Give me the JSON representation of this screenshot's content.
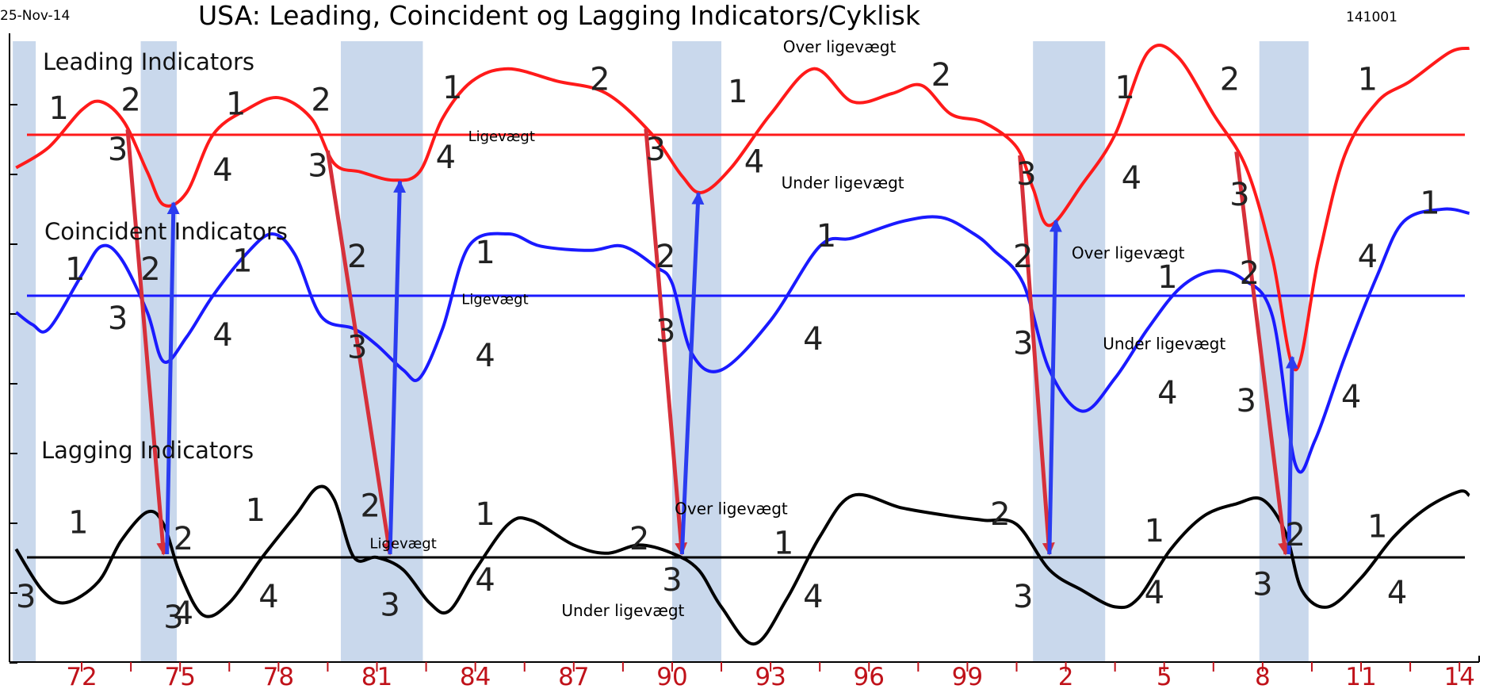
{
  "header": {
    "date": "25-Nov-14",
    "title": "USA: Leading, Coincident og Lagging Indicators/Cyklisk",
    "code": "141001"
  },
  "chart_data": {
    "type": "line",
    "title": "USA: Leading, Coincident og Lagging Indicators/Cyklisk",
    "x_tick_labels": [
      "72",
      "75",
      "78",
      "81",
      "84",
      "87",
      "90",
      "93",
      "96",
      "99",
      "2",
      "5",
      "8",
      "11",
      "14"
    ],
    "x_tick_years": [
      1972,
      1975,
      1978,
      1981,
      1984,
      1987,
      1990,
      1993,
      1996,
      1999,
      2002,
      2005,
      2008,
      2011,
      2014
    ],
    "xlim": [
      1969.8,
      2014.6
    ],
    "grid": false,
    "colors": {
      "leading": "#ff1a1a",
      "coincident": "#1a1aff",
      "lagging": "#000000",
      "recession_band": "#c9d8ec",
      "arrow_red": "#d6303a",
      "arrow_blue": "#2b3df0",
      "x_label": "#c0121a"
    },
    "recessions": [
      [
        1969.9,
        1970.6
      ],
      [
        1973.8,
        1974.9
      ],
      [
        1979.9,
        1982.4
      ],
      [
        1990.0,
        1991.5
      ],
      [
        2001.0,
        2003.2
      ],
      [
        2007.9,
        2009.4
      ]
    ],
    "series": [
      {
        "key": "leading",
        "label": "Leading Indicators",
        "equilibrium": 0,
        "points": [
          [
            1970.0,
            -0.8
          ],
          [
            1971.0,
            -0.3
          ],
          [
            1972.0,
            0.6
          ],
          [
            1972.6,
            0.8
          ],
          [
            1973.3,
            0.3
          ],
          [
            1974.0,
            -0.9
          ],
          [
            1974.5,
            -1.7
          ],
          [
            1975.2,
            -1.4
          ],
          [
            1976.0,
            0.0
          ],
          [
            1977.0,
            0.6
          ],
          [
            1978.0,
            0.9
          ],
          [
            1979.0,
            0.4
          ],
          [
            1979.7,
            -0.7
          ],
          [
            1980.5,
            -0.9
          ],
          [
            1981.5,
            -1.1
          ],
          [
            1982.3,
            -0.9
          ],
          [
            1983.0,
            0.4
          ],
          [
            1983.9,
            1.3
          ],
          [
            1985.0,
            1.6
          ],
          [
            1986.5,
            1.3
          ],
          [
            1988.0,
            1.0
          ],
          [
            1989.4,
            0.0
          ],
          [
            1990.3,
            -1.0
          ],
          [
            1990.9,
            -1.4
          ],
          [
            1991.8,
            -0.8
          ],
          [
            1993.0,
            0.5
          ],
          [
            1994.3,
            1.6
          ],
          [
            1995.5,
            0.8
          ],
          [
            1996.7,
            1.0
          ],
          [
            1997.6,
            1.2
          ],
          [
            1998.5,
            0.5
          ],
          [
            1999.5,
            0.3
          ],
          [
            2000.5,
            -0.3
          ],
          [
            2001.0,
            -1.3
          ],
          [
            2001.5,
            -2.2
          ],
          [
            2002.5,
            -1.2
          ],
          [
            2003.5,
            0.0
          ],
          [
            2004.5,
            2.0
          ],
          [
            2005.4,
            1.9
          ],
          [
            2006.5,
            0.5
          ],
          [
            2007.5,
            -0.8
          ],
          [
            2008.3,
            -3.0
          ],
          [
            2009.0,
            -5.7
          ],
          [
            2009.7,
            -3.0
          ],
          [
            2010.5,
            -0.5
          ],
          [
            2011.5,
            0.8
          ],
          [
            2012.5,
            1.3
          ],
          [
            2013.7,
            2.0
          ],
          [
            2014.3,
            2.1
          ]
        ]
      },
      {
        "key": "coincident",
        "label": "Coincident Indicators",
        "equilibrium": 0,
        "points": [
          [
            1970.0,
            -0.4
          ],
          [
            1970.5,
            -0.7
          ],
          [
            1971.0,
            -0.8
          ],
          [
            1972.0,
            0.5
          ],
          [
            1972.6,
            1.2
          ],
          [
            1973.2,
            0.9
          ],
          [
            1974.0,
            -0.4
          ],
          [
            1974.5,
            -1.6
          ],
          [
            1975.2,
            -1.0
          ],
          [
            1976.0,
            0.0
          ],
          [
            1977.0,
            1.0
          ],
          [
            1977.8,
            1.5
          ],
          [
            1978.5,
            1.0
          ],
          [
            1979.3,
            -0.5
          ],
          [
            1980.3,
            -0.8
          ],
          [
            1981.0,
            -1.2
          ],
          [
            1981.8,
            -1.8
          ],
          [
            1982.3,
            -2.0
          ],
          [
            1983.0,
            -0.8
          ],
          [
            1983.8,
            1.2
          ],
          [
            1985.0,
            1.5
          ],
          [
            1986.0,
            1.2
          ],
          [
            1987.5,
            1.1
          ],
          [
            1988.5,
            1.2
          ],
          [
            1989.5,
            0.7
          ],
          [
            1990.0,
            0.3
          ],
          [
            1990.6,
            -1.4
          ],
          [
            1991.5,
            -1.8
          ],
          [
            1993.0,
            -0.6
          ],
          [
            1994.5,
            1.2
          ],
          [
            1995.5,
            1.4
          ],
          [
            1997.0,
            1.8
          ],
          [
            1998.2,
            1.9
          ],
          [
            1999.2,
            1.5
          ],
          [
            1999.8,
            1.1
          ],
          [
            2000.7,
            0.3
          ],
          [
            2001.5,
            -1.8
          ],
          [
            2002.5,
            -2.8
          ],
          [
            2003.5,
            -2.0
          ],
          [
            2004.5,
            -0.8
          ],
          [
            2005.5,
            0.2
          ],
          [
            2006.5,
            0.6
          ],
          [
            2007.4,
            0.4
          ],
          [
            2008.3,
            -0.5
          ],
          [
            2009.0,
            -4.1
          ],
          [
            2009.6,
            -3.5
          ],
          [
            2010.5,
            -1.5
          ],
          [
            2011.5,
            0.5
          ],
          [
            2012.3,
            1.8
          ],
          [
            2013.5,
            2.1
          ],
          [
            2014.3,
            2.0
          ]
        ]
      },
      {
        "key": "lagging",
        "label": "Lagging Indicators",
        "equilibrium": 0,
        "points": [
          [
            1970.0,
            0.2
          ],
          [
            1970.8,
            -0.8
          ],
          [
            1971.5,
            -1.1
          ],
          [
            1972.5,
            -0.6
          ],
          [
            1973.2,
            0.4
          ],
          [
            1974.0,
            1.1
          ],
          [
            1974.5,
            0.8
          ],
          [
            1975.0,
            -0.4
          ],
          [
            1975.7,
            -1.4
          ],
          [
            1976.5,
            -1.1
          ],
          [
            1977.5,
            0.0
          ],
          [
            1978.5,
            1.0
          ],
          [
            1979.2,
            1.7
          ],
          [
            1979.7,
            1.4
          ],
          [
            1980.3,
            0.0
          ],
          [
            1981.0,
            0.0
          ],
          [
            1981.8,
            -0.3
          ],
          [
            1982.6,
            -1.1
          ],
          [
            1983.2,
            -1.3
          ],
          [
            1984.0,
            -0.3
          ],
          [
            1985.0,
            0.8
          ],
          [
            1985.7,
            0.9
          ],
          [
            1987.0,
            0.3
          ],
          [
            1988.0,
            0.1
          ],
          [
            1989.0,
            0.3
          ],
          [
            1990.0,
            0.1
          ],
          [
            1990.8,
            -0.3
          ],
          [
            1991.5,
            -1.2
          ],
          [
            1992.5,
            -2.1
          ],
          [
            1993.5,
            -1.0
          ],
          [
            1994.5,
            0.5
          ],
          [
            1995.5,
            1.5
          ],
          [
            1997.0,
            1.2
          ],
          [
            1998.5,
            1.0
          ],
          [
            1999.5,
            0.9
          ],
          [
            2000.5,
            0.8
          ],
          [
            2001.5,
            -0.3
          ],
          [
            2002.5,
            -0.8
          ],
          [
            2003.5,
            -1.2
          ],
          [
            2004.2,
            -1.0
          ],
          [
            2005.2,
            0.2
          ],
          [
            2006.2,
            1.0
          ],
          [
            2007.2,
            1.3
          ],
          [
            2008.0,
            1.4
          ],
          [
            2008.7,
            0.6
          ],
          [
            2009.2,
            -0.8
          ],
          [
            2010.0,
            -1.2
          ],
          [
            2011.0,
            -0.5
          ],
          [
            2012.0,
            0.5
          ],
          [
            2013.0,
            1.2
          ],
          [
            2014.0,
            1.6
          ],
          [
            2014.3,
            1.5
          ]
        ]
      }
    ],
    "phase_labels": [
      {
        "series": "leading",
        "x": 1971.3,
        "y": 0.6,
        "text": "1"
      },
      {
        "series": "leading",
        "x": 1973.5,
        "y": 0.8,
        "text": "2"
      },
      {
        "series": "leading",
        "x": 1973.1,
        "y": -0.4,
        "text": "3"
      },
      {
        "series": "leading",
        "x": 1976.3,
        "y": -0.9,
        "text": "4"
      },
      {
        "series": "leading",
        "x": 1976.7,
        "y": 0.7,
        "text": "1"
      },
      {
        "series": "leading",
        "x": 1979.3,
        "y": 0.8,
        "text": "2"
      },
      {
        "series": "leading",
        "x": 1979.2,
        "y": -0.8,
        "text": "3"
      },
      {
        "series": "leading",
        "x": 1983.1,
        "y": -0.6,
        "text": "4"
      },
      {
        "series": "leading",
        "x": 1983.3,
        "y": 1.1,
        "text": "1"
      },
      {
        "series": "leading",
        "x": 1987.8,
        "y": 1.3,
        "text": "2"
      },
      {
        "series": "leading",
        "x": 1989.5,
        "y": -0.4,
        "text": "3"
      },
      {
        "series": "leading",
        "x": 1992.5,
        "y": -0.7,
        "text": "4"
      },
      {
        "series": "leading",
        "x": 1992.0,
        "y": 1.0,
        "text": "1"
      },
      {
        "series": "leading",
        "x": 1998.2,
        "y": 1.4,
        "text": "2"
      },
      {
        "series": "leading",
        "x": 2000.8,
        "y": -1.0,
        "text": "3"
      },
      {
        "series": "leading",
        "x": 2004.0,
        "y": -1.1,
        "text": "4"
      },
      {
        "series": "leading",
        "x": 2003.8,
        "y": 1.1,
        "text": "1"
      },
      {
        "series": "leading",
        "x": 2007.0,
        "y": 1.3,
        "text": "2"
      },
      {
        "series": "leading",
        "x": 2007.3,
        "y": -1.5,
        "text": "3"
      },
      {
        "series": "leading",
        "x": 2011.2,
        "y": 1.3,
        "text": "1"
      },
      {
        "series": "coincident",
        "x": 1971.8,
        "y": 0.6,
        "text": "1"
      },
      {
        "series": "coincident",
        "x": 1974.1,
        "y": 0.6,
        "text": "2"
      },
      {
        "series": "coincident",
        "x": 1973.1,
        "y": -0.6,
        "text": "3"
      },
      {
        "series": "coincident",
        "x": 1976.3,
        "y": -1.0,
        "text": "4"
      },
      {
        "series": "coincident",
        "x": 1976.9,
        "y": 0.8,
        "text": "1"
      },
      {
        "series": "coincident",
        "x": 1980.4,
        "y": 0.9,
        "text": "2"
      },
      {
        "series": "coincident",
        "x": 1980.4,
        "y": -1.3,
        "text": "3"
      },
      {
        "series": "coincident",
        "x": 1984.3,
        "y": -1.5,
        "text": "4"
      },
      {
        "series": "coincident",
        "x": 1984.3,
        "y": 1.0,
        "text": "1"
      },
      {
        "series": "coincident",
        "x": 1989.8,
        "y": 0.9,
        "text": "2"
      },
      {
        "series": "coincident",
        "x": 1989.8,
        "y": -0.9,
        "text": "3"
      },
      {
        "series": "coincident",
        "x": 1994.3,
        "y": -1.1,
        "text": "4"
      },
      {
        "series": "coincident",
        "x": 1994.7,
        "y": 1.4,
        "text": "1"
      },
      {
        "series": "coincident",
        "x": 2000.7,
        "y": 0.9,
        "text": "2"
      },
      {
        "series": "coincident",
        "x": 2000.7,
        "y": -1.2,
        "text": "3"
      },
      {
        "series": "coincident",
        "x": 2005.1,
        "y": -2.4,
        "text": "4"
      },
      {
        "series": "coincident",
        "x": 2005.1,
        "y": 0.4,
        "text": "1"
      },
      {
        "series": "coincident",
        "x": 2007.6,
        "y": 0.5,
        "text": "2"
      },
      {
        "series": "coincident",
        "x": 2007.5,
        "y": -2.6,
        "text": "3"
      },
      {
        "series": "coincident",
        "x": 2010.7,
        "y": -2.5,
        "text": "4"
      },
      {
        "series": "coincident",
        "x": 2011.2,
        "y": 0.9,
        "text": "4"
      },
      {
        "series": "coincident",
        "x": 2013.1,
        "y": 2.2,
        "text": "1"
      },
      {
        "series": "lagging",
        "x": 1971.9,
        "y": 0.8,
        "text": "1"
      },
      {
        "series": "lagging",
        "x": 1975.1,
        "y": 0.4,
        "text": "2"
      },
      {
        "series": "lagging",
        "x": 1970.3,
        "y": -1.0,
        "text": "3"
      },
      {
        "series": "lagging",
        "x": 1975.1,
        "y": -1.4,
        "text": "4"
      },
      {
        "series": "lagging",
        "x": 1974.8,
        "y": -1.5,
        "text": "3"
      },
      {
        "series": "lagging",
        "x": 1977.7,
        "y": -1.0,
        "text": "4"
      },
      {
        "series": "lagging",
        "x": 1977.3,
        "y": 1.1,
        "text": "1"
      },
      {
        "series": "lagging",
        "x": 1980.8,
        "y": 1.2,
        "text": "2"
      },
      {
        "series": "lagging",
        "x": 1981.4,
        "y": -1.2,
        "text": "3"
      },
      {
        "series": "lagging",
        "x": 1984.3,
        "y": -0.6,
        "text": "4"
      },
      {
        "series": "lagging",
        "x": 1984.3,
        "y": 1.0,
        "text": "1"
      },
      {
        "series": "lagging",
        "x": 1989.0,
        "y": 0.4,
        "text": "2"
      },
      {
        "series": "lagging",
        "x": 1990.0,
        "y": -0.6,
        "text": "3"
      },
      {
        "series": "lagging",
        "x": 1994.3,
        "y": -1.0,
        "text": "4"
      },
      {
        "series": "lagging",
        "x": 1993.4,
        "y": 0.3,
        "text": "1"
      },
      {
        "series": "lagging",
        "x": 2000.0,
        "y": 1.0,
        "text": "2"
      },
      {
        "series": "lagging",
        "x": 2000.7,
        "y": -1.0,
        "text": "3"
      },
      {
        "series": "lagging",
        "x": 2004.7,
        "y": -0.9,
        "text": "4"
      },
      {
        "series": "lagging",
        "x": 2004.7,
        "y": 0.6,
        "text": "1"
      },
      {
        "series": "lagging",
        "x": 2009.0,
        "y": 0.5,
        "text": "2"
      },
      {
        "series": "lagging",
        "x": 2008.0,
        "y": -0.7,
        "text": "3"
      },
      {
        "series": "lagging",
        "x": 2012.1,
        "y": -0.9,
        "text": "4"
      },
      {
        "series": "lagging",
        "x": 2011.5,
        "y": 0.7,
        "text": "1"
      }
    ],
    "annotations": [
      {
        "series": "leading",
        "x": 1984.8,
        "y": -0.15,
        "text": "Ligevægt",
        "size": 18
      },
      {
        "series": "leading",
        "x": 1995.1,
        "y": 2.0,
        "text": "Over ligevægt",
        "size": 20
      },
      {
        "series": "leading",
        "x": 1995.2,
        "y": -1.3,
        "text": "Under ligevægt",
        "size": 20
      },
      {
        "series": "coincident",
        "x": 1984.6,
        "y": -0.2,
        "text": "Ligevægt",
        "size": 18
      },
      {
        "series": "coincident",
        "x": 2003.9,
        "y": 0.9,
        "text": "Over ligevægt",
        "size": 20
      },
      {
        "series": "coincident",
        "x": 2005.0,
        "y": -1.3,
        "text": "Under ligevægt",
        "size": 20
      },
      {
        "series": "lagging",
        "x": 1981.8,
        "y": 0.22,
        "text": "Ligevægt",
        "size": 18
      },
      {
        "series": "lagging",
        "x": 1991.8,
        "y": 1.05,
        "text": "Over ligevægt",
        "size": 20
      },
      {
        "series": "lagging",
        "x": 1988.5,
        "y": -1.42,
        "text": "Under ligevægt",
        "size": 20
      }
    ],
    "red_arrows": [
      [
        1973.4,
        1974.5
      ],
      [
        1979.5,
        1981.4
      ],
      [
        1989.2,
        1990.3
      ],
      [
        2000.6,
        2001.5
      ],
      [
        2007.2,
        2008.7
      ]
    ],
    "blue_arrows": [
      [
        1974.6,
        1974.8
      ],
      [
        1981.4,
        1981.7
      ],
      [
        1990.3,
        1990.8
      ],
      [
        2001.5,
        2001.7
      ],
      [
        2008.8,
        2008.9
      ]
    ]
  }
}
